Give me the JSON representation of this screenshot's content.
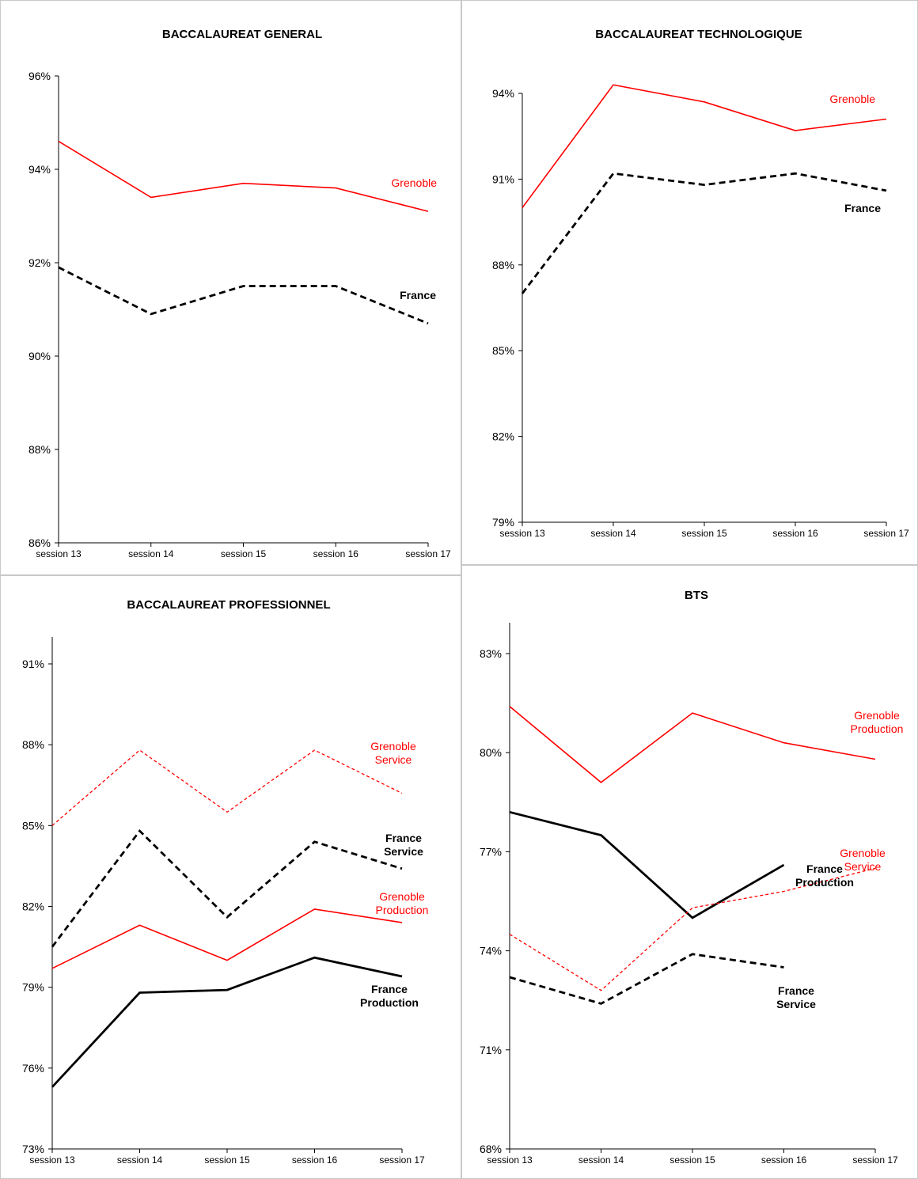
{
  "chart_data": [
    {
      "type": "line",
      "title": "BACCALAUREAT GENERAL",
      "categories": [
        "session 13",
        "session 14",
        "session 15",
        "session 16",
        "session 17"
      ],
      "y_ticks": [
        "86%",
        "88%",
        "90%",
        "92%",
        "94%",
        "96%"
      ],
      "ylim": [
        86,
        96
      ],
      "series": [
        {
          "name": "Grenoble",
          "values": [
            94.6,
            93.4,
            93.7,
            93.6,
            93.1
          ],
          "color": "#ff0000",
          "style": "solid-thin"
        },
        {
          "name": "France",
          "values": [
            91.9,
            90.9,
            91.5,
            91.5,
            90.7
          ],
          "color": "#000000",
          "style": "dashed-thick"
        }
      ]
    },
    {
      "type": "line",
      "title": "BACCALAUREAT TECHNOLOGIQUE",
      "categories": [
        "session 13",
        "session 14",
        "session 15",
        "session 16",
        "session 17"
      ],
      "y_ticks": [
        "79%",
        "82%",
        "85%",
        "88%",
        "91%",
        "94%"
      ],
      "ylim": [
        79,
        94
      ],
      "series": [
        {
          "name": "Grenoble",
          "values": [
            90.0,
            94.3,
            93.7,
            92.7,
            93.1
          ],
          "color": "#ff0000",
          "style": "solid-thin"
        },
        {
          "name": "France",
          "values": [
            87.0,
            91.2,
            90.8,
            91.2,
            90.6
          ],
          "color": "#000000",
          "style": "dashed-thick"
        }
      ]
    },
    {
      "type": "line",
      "title": "BACCALAUREAT PROFESSIONNEL",
      "categories": [
        "session 13",
        "session 14",
        "session 15",
        "session 16",
        "session 17"
      ],
      "y_ticks": [
        "73%",
        "76%",
        "79%",
        "82%",
        "85%",
        "88%",
        "91%"
      ],
      "ylim": [
        73,
        92
      ],
      "series": [
        {
          "name": "Grenoble Service",
          "values": [
            85.0,
            87.8,
            85.5,
            87.8,
            86.2
          ],
          "color": "#ff0000",
          "style": "dashed-thin"
        },
        {
          "name": "France Service",
          "values": [
            80.5,
            84.8,
            81.6,
            84.4,
            83.4
          ],
          "color": "#000000",
          "style": "dashed-thick"
        },
        {
          "name": "Grenoble Production",
          "values": [
            79.7,
            81.3,
            80.0,
            81.9,
            81.4
          ],
          "color": "#ff0000",
          "style": "solid-thin"
        },
        {
          "name": "France Production",
          "values": [
            75.3,
            78.8,
            78.9,
            80.1,
            79.4
          ],
          "color": "#000000",
          "style": "solid-thick"
        }
      ]
    },
    {
      "type": "line",
      "title": "BTS",
      "categories": [
        "session 13",
        "session 14",
        "session 15",
        "session 16",
        "session 17"
      ],
      "y_ticks": [
        "68%",
        "71%",
        "74%",
        "77%",
        "80%",
        "83%"
      ],
      "ylim": [
        68,
        84
      ],
      "series": [
        {
          "name": "Grenoble Production",
          "values": [
            81.4,
            79.1,
            81.2,
            80.3,
            79.8
          ],
          "color": "#ff0000",
          "style": "solid-thin"
        },
        {
          "name": "France Production",
          "values": [
            78.2,
            77.5,
            75.0,
            76.6,
            null
          ],
          "color": "#000000",
          "style": "solid-thick"
        },
        {
          "name": "Grenoble Service",
          "values": [
            74.5,
            72.8,
            75.3,
            75.8,
            76.5
          ],
          "color": "#ff0000",
          "style": "dashed-thin"
        },
        {
          "name": "France Service",
          "values": [
            73.2,
            72.4,
            73.9,
            73.5,
            null
          ],
          "color": "#000000",
          "style": "dashed-thick"
        }
      ]
    }
  ],
  "labels": [
    {
      "chart": 0,
      "lines": [
        "Grenoble"
      ],
      "color": "#ff0000",
      "bold": false
    },
    {
      "chart": 0,
      "lines": [
        "France"
      ],
      "color": "#000000",
      "bold": true
    },
    {
      "chart": 1,
      "lines": [
        "Grenoble"
      ],
      "color": "#ff0000",
      "bold": false
    },
    {
      "chart": 1,
      "lines": [
        "France"
      ],
      "color": "#000000",
      "bold": true
    },
    {
      "chart": 2,
      "lines": [
        "Grenoble",
        "Service"
      ],
      "color": "#ff0000",
      "bold": false
    },
    {
      "chart": 2,
      "lines": [
        "France",
        "Service"
      ],
      "color": "#000000",
      "bold": true
    },
    {
      "chart": 2,
      "lines": [
        "Grenoble",
        "Production"
      ],
      "color": "#ff0000",
      "bold": false
    },
    {
      "chart": 2,
      "lines": [
        "France",
        "Production"
      ],
      "color": "#000000",
      "bold": true
    },
    {
      "chart": 3,
      "lines": [
        "Grenoble",
        "Production"
      ],
      "color": "#ff0000",
      "bold": false
    },
    {
      "chart": 3,
      "lines": [
        "Grenoble",
        "Service"
      ],
      "color": "#ff0000",
      "bold": false
    },
    {
      "chart": 3,
      "lines": [
        "France",
        "Production"
      ],
      "color": "#000000",
      "bold": true
    },
    {
      "chart": 3,
      "lines": [
        "France",
        "Service"
      ],
      "color": "#000000",
      "bold": true
    }
  ]
}
